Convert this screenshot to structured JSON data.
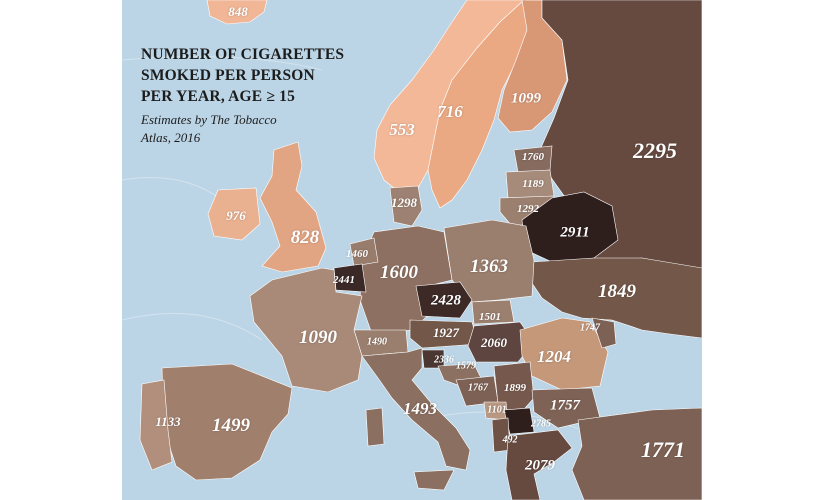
{
  "title_lines": [
    "NUMBER OF CIGARETTES",
    "SMOKED PER PERSON",
    "PER YEAR, AGE ≥ 15"
  ],
  "subtitle_lines": [
    "Estimates by The Tobacco",
    "Atlas, 2016"
  ],
  "colors": {
    "sea": "#bcd5e6",
    "outside_map": "#ffffff",
    "scale_lowest": "#f1b696",
    "scale_highest": "#2e1f1d"
  },
  "values": {
    "iceland": "848",
    "norway": "553",
    "sweden": "716",
    "finland": "1099",
    "russia": "2295",
    "estonia": "1760",
    "latvia": "1189",
    "lithuania": "1292",
    "denmark": "1298",
    "belarus": "2911",
    "ireland": "976",
    "united_kingdom": "828",
    "netherlands": "1460",
    "belgium": "2441",
    "germany": "1600",
    "poland": "1363",
    "czechia": "2428",
    "ukraine": "1849",
    "slovakia": "1501",
    "france": "1090",
    "austria": "1927",
    "hungary": "2060",
    "switzerland": "1490",
    "moldova": "1747",
    "romania": "1204",
    "slovenia": "2336",
    "croatia": "1579",
    "bosnia": "1767",
    "serbia": "1899",
    "montenegro": "1101",
    "bulgaria": "1757",
    "macedonia": "2785",
    "albania": "492",
    "portugal": "1133",
    "spain": "1499",
    "italy": "1493",
    "greece": "2079",
    "turkey": "1771"
  }
}
